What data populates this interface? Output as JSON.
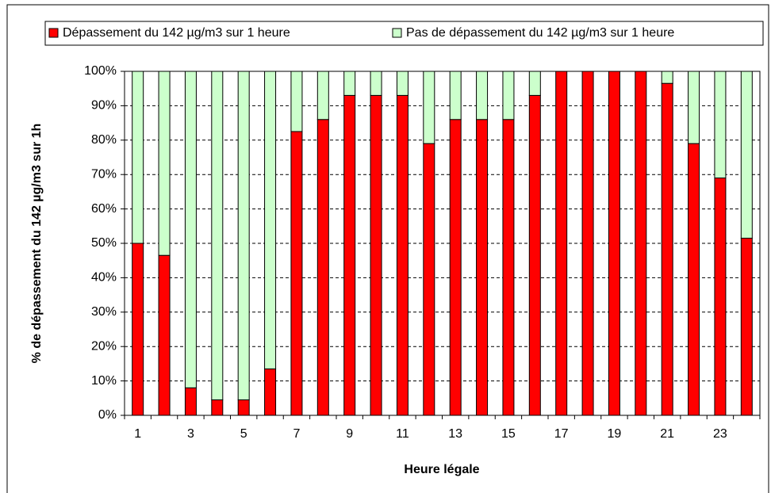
{
  "chart_data": {
    "type": "bar",
    "stacked": true,
    "ylabel": "% de dépassement du 142 µg/m3 sur 1h",
    "xlabel": "Heure légale",
    "categories": [
      "1",
      null,
      "3",
      null,
      "5",
      null,
      "7",
      null,
      "9",
      null,
      "11",
      null,
      "13",
      null,
      "15",
      null,
      "17",
      null,
      "19",
      null,
      "21",
      null,
      "23",
      null
    ],
    "series": [
      {
        "name": "Dépassement du 142 µg/m3 sur 1 heure",
        "color": "#ff0000",
        "values": [
          50,
          46.5,
          8,
          4.5,
          4.5,
          13.5,
          82.5,
          86,
          93,
          93,
          93,
          79,
          86,
          86,
          86,
          93,
          100,
          100,
          100,
          100,
          96.5,
          79,
          69,
          51.5
        ]
      },
      {
        "name": "Pas de dépassement du 142 µg/m3 sur 1 heure",
        "color": "#ccffcc",
        "values": [
          50,
          53.5,
          92,
          95.5,
          95.5,
          86.5,
          17.5,
          14,
          7,
          7,
          7,
          21,
          14,
          14,
          14,
          7,
          0,
          0,
          0,
          0,
          3.5,
          21,
          31,
          48.5
        ]
      }
    ],
    "ylim": [
      0,
      100
    ],
    "yticks": [
      {
        "value": 0,
        "label": "0%"
      },
      {
        "value": 10,
        "label": "10%"
      },
      {
        "value": 20,
        "label": "20%"
      },
      {
        "value": 30,
        "label": "30%"
      },
      {
        "value": 40,
        "label": "40%"
      },
      {
        "value": 50,
        "label": "50%"
      },
      {
        "value": 60,
        "label": "60%"
      },
      {
        "value": 70,
        "label": "70%"
      },
      {
        "value": 80,
        "label": "80%"
      },
      {
        "value": 90,
        "label": "90%"
      },
      {
        "value": 100,
        "label": "100%"
      }
    ],
    "grid": true,
    "legend": "top"
  }
}
